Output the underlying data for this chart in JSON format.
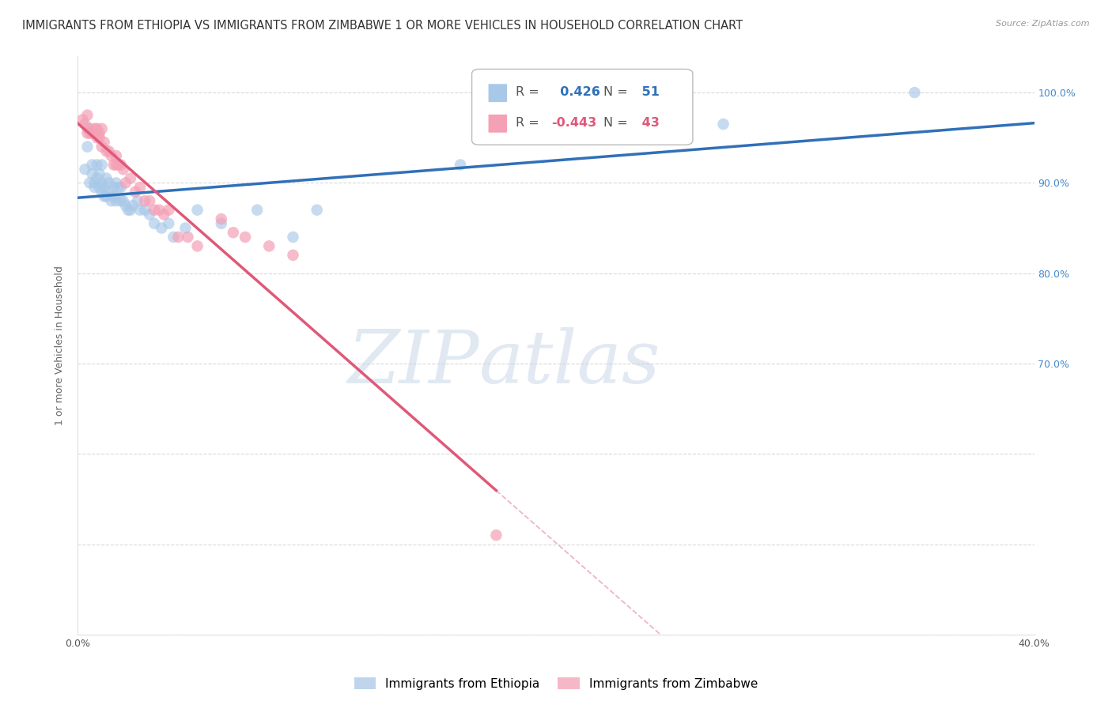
{
  "title": "IMMIGRANTS FROM ETHIOPIA VS IMMIGRANTS FROM ZIMBABWE 1 OR MORE VEHICLES IN HOUSEHOLD CORRELATION CHART",
  "source": "Source: ZipAtlas.com",
  "ylabel": "1 or more Vehicles in Household",
  "legend_ethiopia": "Immigrants from Ethiopia",
  "legend_zimbabwe": "Immigrants from Zimbabwe",
  "r_ethiopia": 0.426,
  "n_ethiopia": 51,
  "r_zimbabwe": -0.443,
  "n_zimbabwe": 43,
  "color_ethiopia": "#a8c8e8",
  "color_zimbabwe": "#f4a0b5",
  "color_ethiopia_line": "#3070b8",
  "color_zimbabwe_line": "#e05878",
  "xlim": [
    0.0,
    0.4
  ],
  "ylim": [
    0.4,
    1.04
  ],
  "xticks": [
    0.0,
    0.05,
    0.1,
    0.15,
    0.2,
    0.25,
    0.3,
    0.35,
    0.4
  ],
  "xticklabels": [
    "0.0%",
    "",
    "",
    "",
    "",
    "",
    "",
    "",
    "40.0%"
  ],
  "yticks": [
    0.4,
    0.5,
    0.6,
    0.7,
    0.8,
    0.9,
    1.0
  ],
  "yticklabels": [
    "",
    "",
    "",
    "70.0%",
    "80.0%",
    "90.0%",
    "100.0%"
  ],
  "ethiopia_x": [
    0.003,
    0.004,
    0.004,
    0.005,
    0.006,
    0.006,
    0.007,
    0.007,
    0.008,
    0.008,
    0.009,
    0.009,
    0.01,
    0.01,
    0.01,
    0.011,
    0.011,
    0.012,
    0.012,
    0.013,
    0.013,
    0.014,
    0.015,
    0.015,
    0.016,
    0.016,
    0.017,
    0.018,
    0.018,
    0.019,
    0.02,
    0.021,
    0.022,
    0.023,
    0.025,
    0.026,
    0.028,
    0.03,
    0.032,
    0.035,
    0.038,
    0.04,
    0.045,
    0.05,
    0.06,
    0.075,
    0.09,
    0.1,
    0.16,
    0.27,
    0.35
  ],
  "ethiopia_y": [
    0.915,
    0.94,
    0.96,
    0.9,
    0.91,
    0.92,
    0.9,
    0.895,
    0.905,
    0.92,
    0.895,
    0.91,
    0.89,
    0.9,
    0.92,
    0.885,
    0.895,
    0.885,
    0.905,
    0.89,
    0.9,
    0.88,
    0.885,
    0.895,
    0.88,
    0.9,
    0.895,
    0.88,
    0.895,
    0.88,
    0.875,
    0.87,
    0.87,
    0.875,
    0.88,
    0.87,
    0.87,
    0.865,
    0.855,
    0.85,
    0.855,
    0.84,
    0.85,
    0.87,
    0.855,
    0.87,
    0.84,
    0.87,
    0.92,
    0.965,
    1.0
  ],
  "zimbabwe_x": [
    0.002,
    0.003,
    0.004,
    0.004,
    0.005,
    0.005,
    0.006,
    0.007,
    0.008,
    0.008,
    0.009,
    0.009,
    0.01,
    0.01,
    0.011,
    0.012,
    0.013,
    0.014,
    0.015,
    0.016,
    0.016,
    0.017,
    0.018,
    0.019,
    0.02,
    0.022,
    0.024,
    0.026,
    0.028,
    0.03,
    0.032,
    0.034,
    0.036,
    0.038,
    0.042,
    0.046,
    0.05,
    0.06,
    0.065,
    0.07,
    0.08,
    0.09,
    0.175
  ],
  "zimbabwe_y": [
    0.97,
    0.965,
    0.955,
    0.975,
    0.96,
    0.955,
    0.955,
    0.96,
    0.95,
    0.96,
    0.95,
    0.955,
    0.94,
    0.96,
    0.945,
    0.935,
    0.935,
    0.93,
    0.92,
    0.92,
    0.93,
    0.92,
    0.92,
    0.915,
    0.9,
    0.905,
    0.89,
    0.895,
    0.88,
    0.88,
    0.87,
    0.87,
    0.865,
    0.87,
    0.84,
    0.84,
    0.83,
    0.86,
    0.845,
    0.84,
    0.83,
    0.82,
    0.51
  ],
  "watermark_zip": "ZIP",
  "watermark_atlas": "atlas",
  "background_color": "#ffffff",
  "grid_color": "#d0d0d0",
  "title_fontsize": 10.5,
  "axis_label_fontsize": 9,
  "tick_fontsize": 9,
  "right_axis_color": "#4488cc"
}
